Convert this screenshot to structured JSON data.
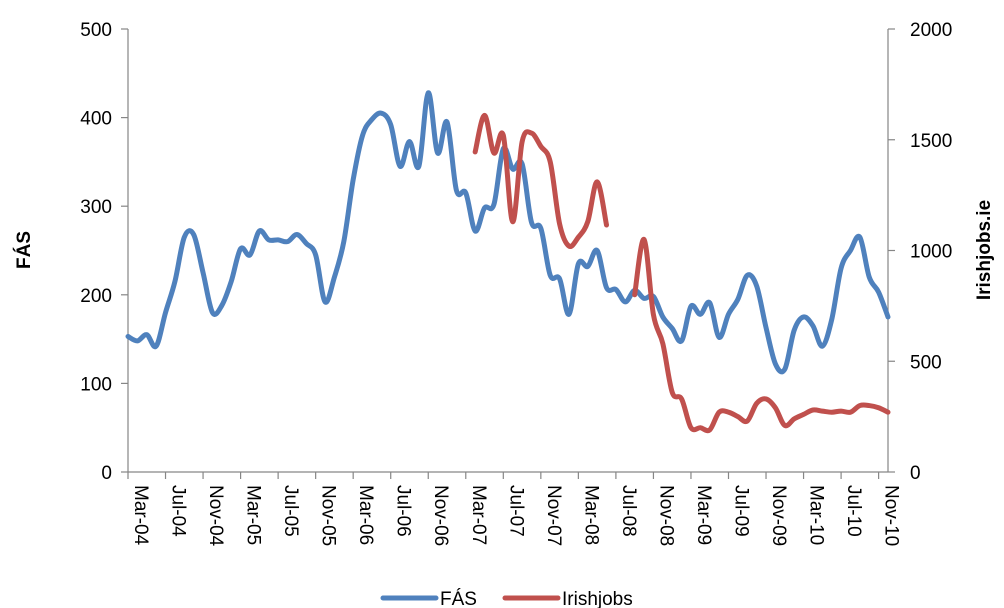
{
  "chart_data": {
    "type": "line",
    "title": "",
    "xlabel": "",
    "ylabel": "FÁS",
    "y2label": "Irishjobs.ie",
    "ylim": [
      0,
      500
    ],
    "y2lim": [
      0,
      2000
    ],
    "yticks": [
      0,
      100,
      200,
      300,
      400,
      500
    ],
    "y2ticks": [
      0,
      500,
      1000,
      1500,
      2000
    ],
    "x_tick_labels": [
      "Mar-04",
      "Jul-04",
      "Nov-04",
      "Mar-05",
      "Jul-05",
      "Nov-05",
      "Mar-06",
      "Jul-06",
      "Nov-06",
      "Mar-07",
      "Jul-07",
      "Nov-07",
      "Mar-08",
      "Jul-08",
      "Nov-08",
      "Mar-09",
      "Jul-09",
      "Nov-09",
      "Mar-10",
      "Jul-10",
      "Nov-10"
    ],
    "x_start": "Mar-04",
    "legend_position": "bottom",
    "grid": false,
    "series": [
      {
        "name": "FÁS",
        "axis": "left",
        "color": "#4F81BD",
        "values": [
          153,
          148,
          155,
          142,
          180,
          215,
          265,
          268,
          225,
          180,
          188,
          215,
          252,
          245,
          272,
          262,
          262,
          260,
          268,
          258,
          245,
          192,
          220,
          260,
          330,
          380,
          398,
          405,
          392,
          345,
          373,
          345,
          428,
          360,
          395,
          318,
          315,
          272,
          298,
          302,
          365,
          342,
          348,
          282,
          275,
          222,
          218,
          178,
          235,
          232,
          250,
          208,
          206,
          192,
          205,
          196,
          198,
          175,
          162,
          148,
          187,
          178,
          191,
          152,
          178,
          195,
          222,
          210,
          163,
          122,
          116,
          160,
          175,
          165,
          142,
          172,
          230,
          250,
          265,
          220,
          203,
          175
        ]
      },
      {
        "name": "Irishjobs",
        "axis": "right",
        "color": "#C0504D",
        "segments": [
          {
            "start": "Apr-07",
            "values": [
              1445,
              1610,
              1440,
              1520,
              1130,
              1490,
              1530,
              1470,
              1400,
              1120,
              1020,
              1060,
              1130,
              1310,
              1115
            ]
          },
          {
            "start": "Sep-08",
            "values": [
              800,
              1050,
              710,
              580,
              360,
              330,
              200,
              200,
              190,
              270,
              270,
              250,
              230,
              310,
              330,
              290,
              210,
              240,
              260,
              280,
              275,
              270,
              275,
              270,
              300,
              300,
              290,
              270
            ]
          }
        ]
      }
    ]
  }
}
